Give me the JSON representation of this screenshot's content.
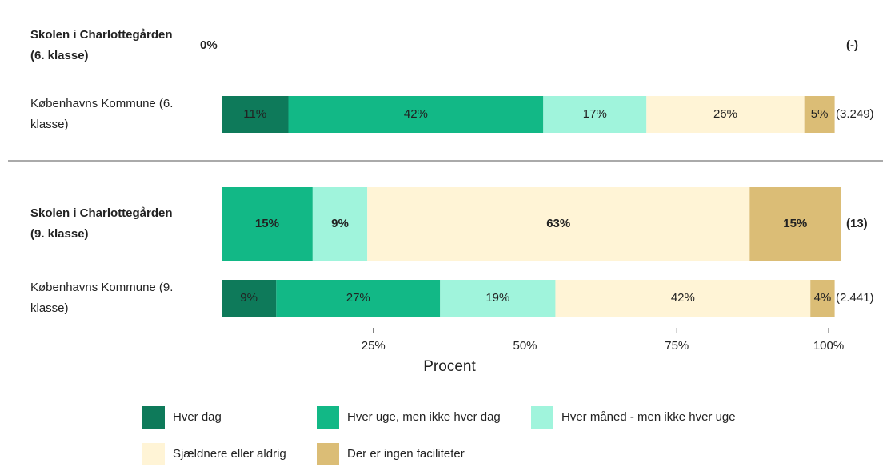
{
  "chart_data": {
    "type": "stacked-bar-horizontal",
    "categories": [
      "Skolen i Charlottegården (6. klasse)",
      "Københavns Kommune (6. klasse)",
      "Skolen i Charlottegården (9. klasse)",
      "Københavns Kommune (9. klasse)"
    ],
    "highlight": [
      true,
      false,
      true,
      false
    ],
    "empty_labels": [
      "0%",
      null,
      null,
      null
    ],
    "counts": [
      "(-)",
      "(3.249)",
      "(13)",
      "(2.441)"
    ],
    "series": [
      {
        "name": "Hver dag",
        "color": "#0e7a5a",
        "values": [
          null,
          11,
          null,
          9
        ],
        "value_labels": [
          null,
          "11%",
          null,
          "9%"
        ]
      },
      {
        "name": "Hver uge, men ikke hver dag",
        "color": "#12b886",
        "values": [
          null,
          42,
          15,
          27
        ],
        "value_labels": [
          null,
          "42%",
          "15%",
          "27%"
        ]
      },
      {
        "name": "Hver måned - men ikke hver uge",
        "color": "#a0f4dc",
        "values": [
          null,
          17,
          9,
          19
        ],
        "value_labels": [
          null,
          "17%",
          "9%",
          "19%"
        ]
      },
      {
        "name": "Sjældnere eller aldrig",
        "color": "#fff4d6",
        "values": [
          null,
          26,
          63,
          42
        ],
        "value_labels": [
          null,
          "26%",
          "63%",
          "42%"
        ]
      },
      {
        "name": "Der er ingen faciliteter",
        "color": "#dbbd76",
        "values": [
          null,
          5,
          15,
          4
        ],
        "value_labels": [
          null,
          "5%",
          "15%",
          "4%"
        ]
      }
    ],
    "xlim": [
      0,
      100
    ],
    "xticks": [
      {
        "value": 25,
        "label": "25%"
      },
      {
        "value": 50,
        "label": "50%"
      },
      {
        "value": 75,
        "label": "75%"
      },
      {
        "value": 100,
        "label": "100%"
      }
    ],
    "xlabel": "Procent"
  }
}
